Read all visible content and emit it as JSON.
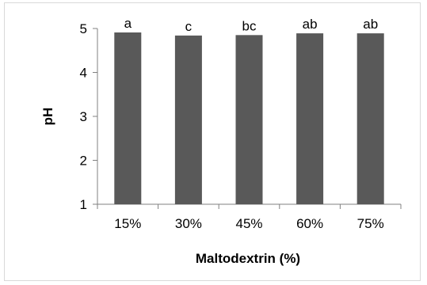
{
  "chart_data": {
    "type": "bar",
    "title": "",
    "xlabel": "Maltodextrin (%)",
    "ylabel": "pH",
    "categories": [
      "15%",
      "30%",
      "45%",
      "60%",
      "75%"
    ],
    "values": [
      4.91,
      4.84,
      4.85,
      4.89,
      4.89
    ],
    "bar_labels": [
      "a",
      "c",
      "bc",
      "ab",
      "ab"
    ],
    "ylim": [
      1,
      5
    ],
    "yticks": [
      1,
      2,
      3,
      4,
      5
    ],
    "grid": false,
    "legend": "none",
    "bar_color": "#595959"
  }
}
